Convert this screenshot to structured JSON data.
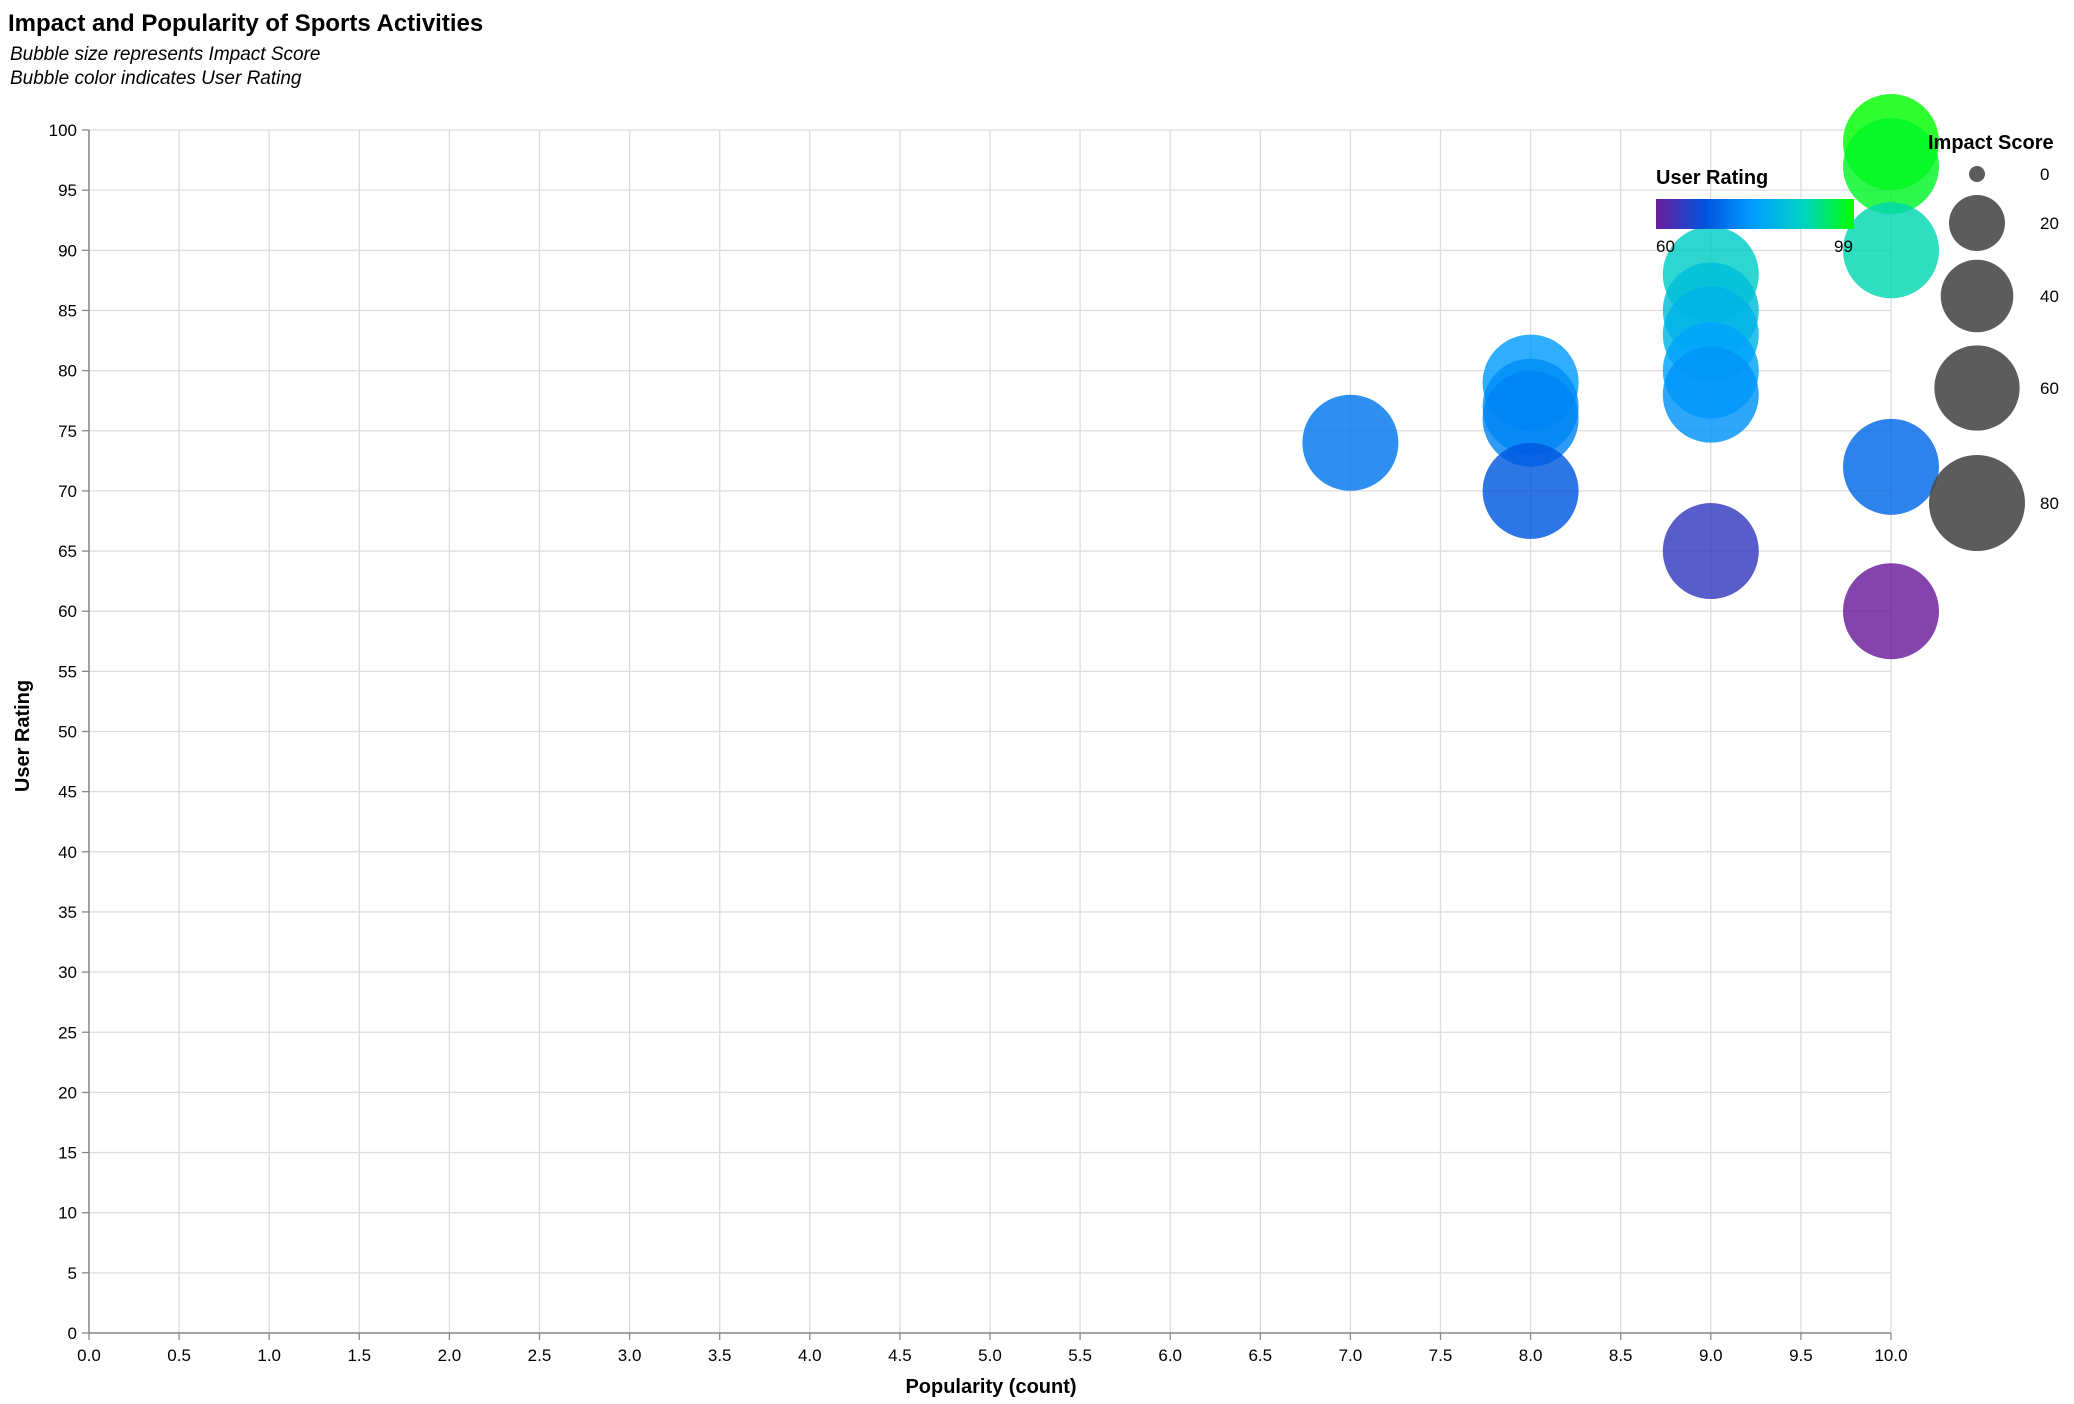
{
  "chart_data": {
    "type": "scatter",
    "title": "Impact and Popularity of Sports Activities",
    "subtitle": [
      "Bubble size represents Impact Score",
      "Bubble color indicates User Rating"
    ],
    "xlabel": "Popularity (count)",
    "ylabel": "User Rating",
    "xlim": [
      0,
      10
    ],
    "ylim": [
      0,
      100
    ],
    "x_ticks": [
      "0.0",
      "0.5",
      "1.0",
      "1.5",
      "2.0",
      "2.5",
      "3.0",
      "3.5",
      "4.0",
      "4.5",
      "5.0",
      "5.5",
      "6.0",
      "6.5",
      "7.0",
      "7.5",
      "8.0",
      "8.5",
      "9.0",
      "9.5",
      "10.0"
    ],
    "y_ticks": [
      "0",
      "5",
      "10",
      "15",
      "20",
      "25",
      "30",
      "35",
      "40",
      "45",
      "50",
      "55",
      "60",
      "65",
      "70",
      "75",
      "80",
      "85",
      "90",
      "95",
      "100"
    ],
    "grid": true,
    "size_field": "Impact Score",
    "color_field": "User Rating",
    "points": [
      {
        "x": 10,
        "y": 99,
        "impact": 80
      },
      {
        "x": 10,
        "y": 97,
        "impact": 80
      },
      {
        "x": 10,
        "y": 90,
        "impact": 80
      },
      {
        "x": 10,
        "y": 72,
        "impact": 80
      },
      {
        "x": 10,
        "y": 60,
        "impact": 80
      },
      {
        "x": 9,
        "y": 88,
        "impact": 80
      },
      {
        "x": 9,
        "y": 85,
        "impact": 80
      },
      {
        "x": 9,
        "y": 83,
        "impact": 80
      },
      {
        "x": 9,
        "y": 80,
        "impact": 80
      },
      {
        "x": 9,
        "y": 78,
        "impact": 80
      },
      {
        "x": 9,
        "y": 65,
        "impact": 80
      },
      {
        "x": 8,
        "y": 79,
        "impact": 80
      },
      {
        "x": 8,
        "y": 77,
        "impact": 80
      },
      {
        "x": 8,
        "y": 76,
        "impact": 80
      },
      {
        "x": 8,
        "y": 70,
        "impact": 80
      },
      {
        "x": 7,
        "y": 74,
        "impact": 80
      }
    ],
    "color_legend": {
      "title": "User Rating",
      "min_label": "60",
      "max_label": "99",
      "min": 60,
      "max": 99
    },
    "size_legend": {
      "title": "Impact Score",
      "values": [
        0,
        20,
        40,
        60,
        80
      ],
      "labels": [
        "0",
        "20",
        "40",
        "60",
        "80"
      ]
    },
    "colors": {
      "scale_stops": [
        "#6a1b9a",
        "#0055e0",
        "#00a0ff",
        "#00d4c0",
        "#00ff00"
      ],
      "grid": "#dddddd",
      "axis": "#888888",
      "size_legend_fill": "#4a4a4a"
    },
    "legend_placement": "top-right"
  }
}
